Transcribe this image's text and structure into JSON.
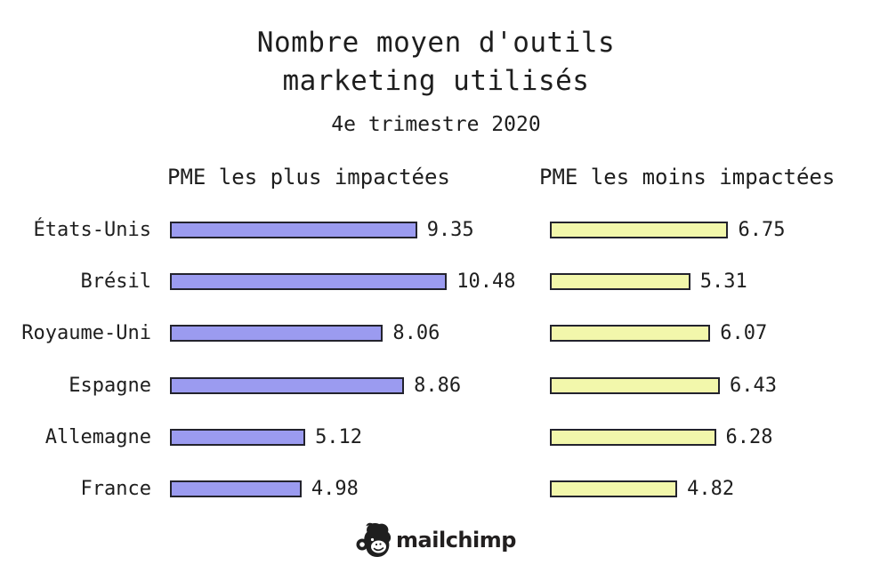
{
  "title": {
    "line1": "Nombre moyen d'outils",
    "line2": "marketing utilisés"
  },
  "subtitle": "4e trimestre 2020",
  "chart_data": {
    "type": "bar",
    "orientation": "horizontal",
    "title": "Nombre moyen d'outils marketing utilisés",
    "subtitle": "4e trimestre 2020",
    "categories": [
      "États-Unis",
      "Brésil",
      "Royaume-Uni",
      "Espagne",
      "Allemagne",
      "France"
    ],
    "series": [
      {
        "name": "PME les plus impactées",
        "color": "#9b9bf0",
        "values": [
          9.35,
          10.48,
          8.06,
          8.86,
          5.12,
          4.98
        ]
      },
      {
        "name": "PME les moins impactées",
        "color": "#f2f7ab",
        "values": [
          6.75,
          5.31,
          6.07,
          6.43,
          6.28,
          4.82
        ]
      }
    ],
    "value_labels_shown": true,
    "xlim": [
      0,
      10.48
    ],
    "grid": false,
    "legend_position": "column-headers"
  },
  "footer": {
    "brand": "mailchimp",
    "logo_icon": "mailchimp-freddie-icon"
  },
  "colors": {
    "background": "#ffffff",
    "text": "#1e1e1e",
    "bar_border": "#23232d",
    "series1_fill": "#9b9bf0",
    "series2_fill": "#f2f7ab"
  }
}
